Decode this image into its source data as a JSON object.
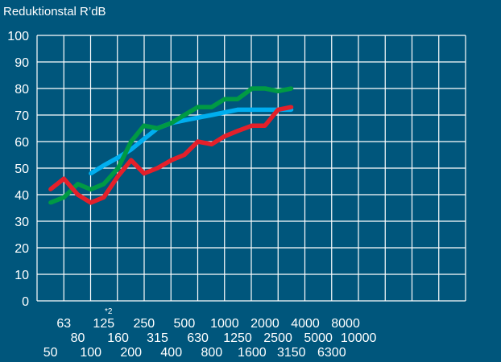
{
  "chart_data": {
    "type": "line",
    "title": "Reduktionstal R’dB",
    "x_footnote": "*2",
    "ylim": [
      0,
      100
    ],
    "yticks": [
      0,
      10,
      20,
      30,
      40,
      50,
      60,
      70,
      80,
      90,
      100
    ],
    "grid": true,
    "x_scale": "log",
    "xticks": [
      50,
      63,
      80,
      100,
      125,
      160,
      200,
      250,
      315,
      400,
      500,
      630,
      800,
      1000,
      1250,
      1600,
      2000,
      2500,
      3150,
      4000,
      5000,
      6300,
      8000,
      10000
    ],
    "colors": {
      "background": "#00567c",
      "grid": "#ffffff"
    },
    "series": [
      {
        "color": "#00aeef",
        "x": [
          100,
          125,
          160,
          200,
          250,
          315,
          400,
          500,
          630,
          800,
          1000,
          1250,
          1600,
          2000,
          2500,
          3150
        ],
        "values": [
          48,
          51,
          54,
          57,
          61,
          65,
          67,
          68,
          69,
          70,
          71,
          72,
          72,
          72,
          72,
          72
        ]
      },
      {
        "color": "#009a44",
        "x": [
          50,
          63,
          80,
          100,
          125,
          160,
          200,
          250,
          315,
          400,
          500,
          630,
          800,
          1000,
          1250,
          1600,
          2000,
          2500,
          3150
        ],
        "values": [
          37,
          39,
          44,
          42,
          44,
          50,
          60,
          66,
          65,
          67,
          70,
          73,
          73,
          76,
          76,
          80,
          80,
          79,
          80
        ]
      },
      {
        "color": "#e4202a",
        "x": [
          50,
          63,
          80,
          100,
          125,
          160,
          200,
          250,
          315,
          400,
          500,
          630,
          800,
          1000,
          1250,
          1600,
          2000,
          2500,
          3150
        ],
        "values": [
          42,
          46,
          40,
          37,
          39,
          47,
          53,
          48,
          50,
          53,
          55,
          60,
          59,
          62,
          64,
          66,
          66,
          72,
          73
        ]
      }
    ]
  }
}
